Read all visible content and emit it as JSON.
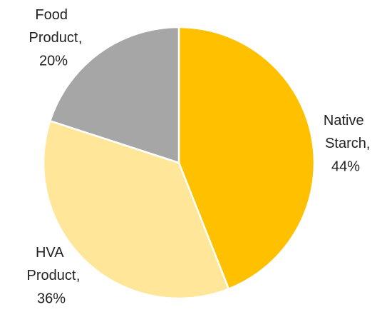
{
  "chart_data": {
    "type": "pie",
    "categories": [
      "Native Starch",
      "HVA Product",
      "Food Product"
    ],
    "values": [
      44,
      36,
      20
    ],
    "value_labels": [
      "44%",
      "36%",
      "20%"
    ],
    "label_separator": ",",
    "colors": [
      "#FFC000",
      "#FFE699",
      "#A6A6A6"
    ]
  }
}
